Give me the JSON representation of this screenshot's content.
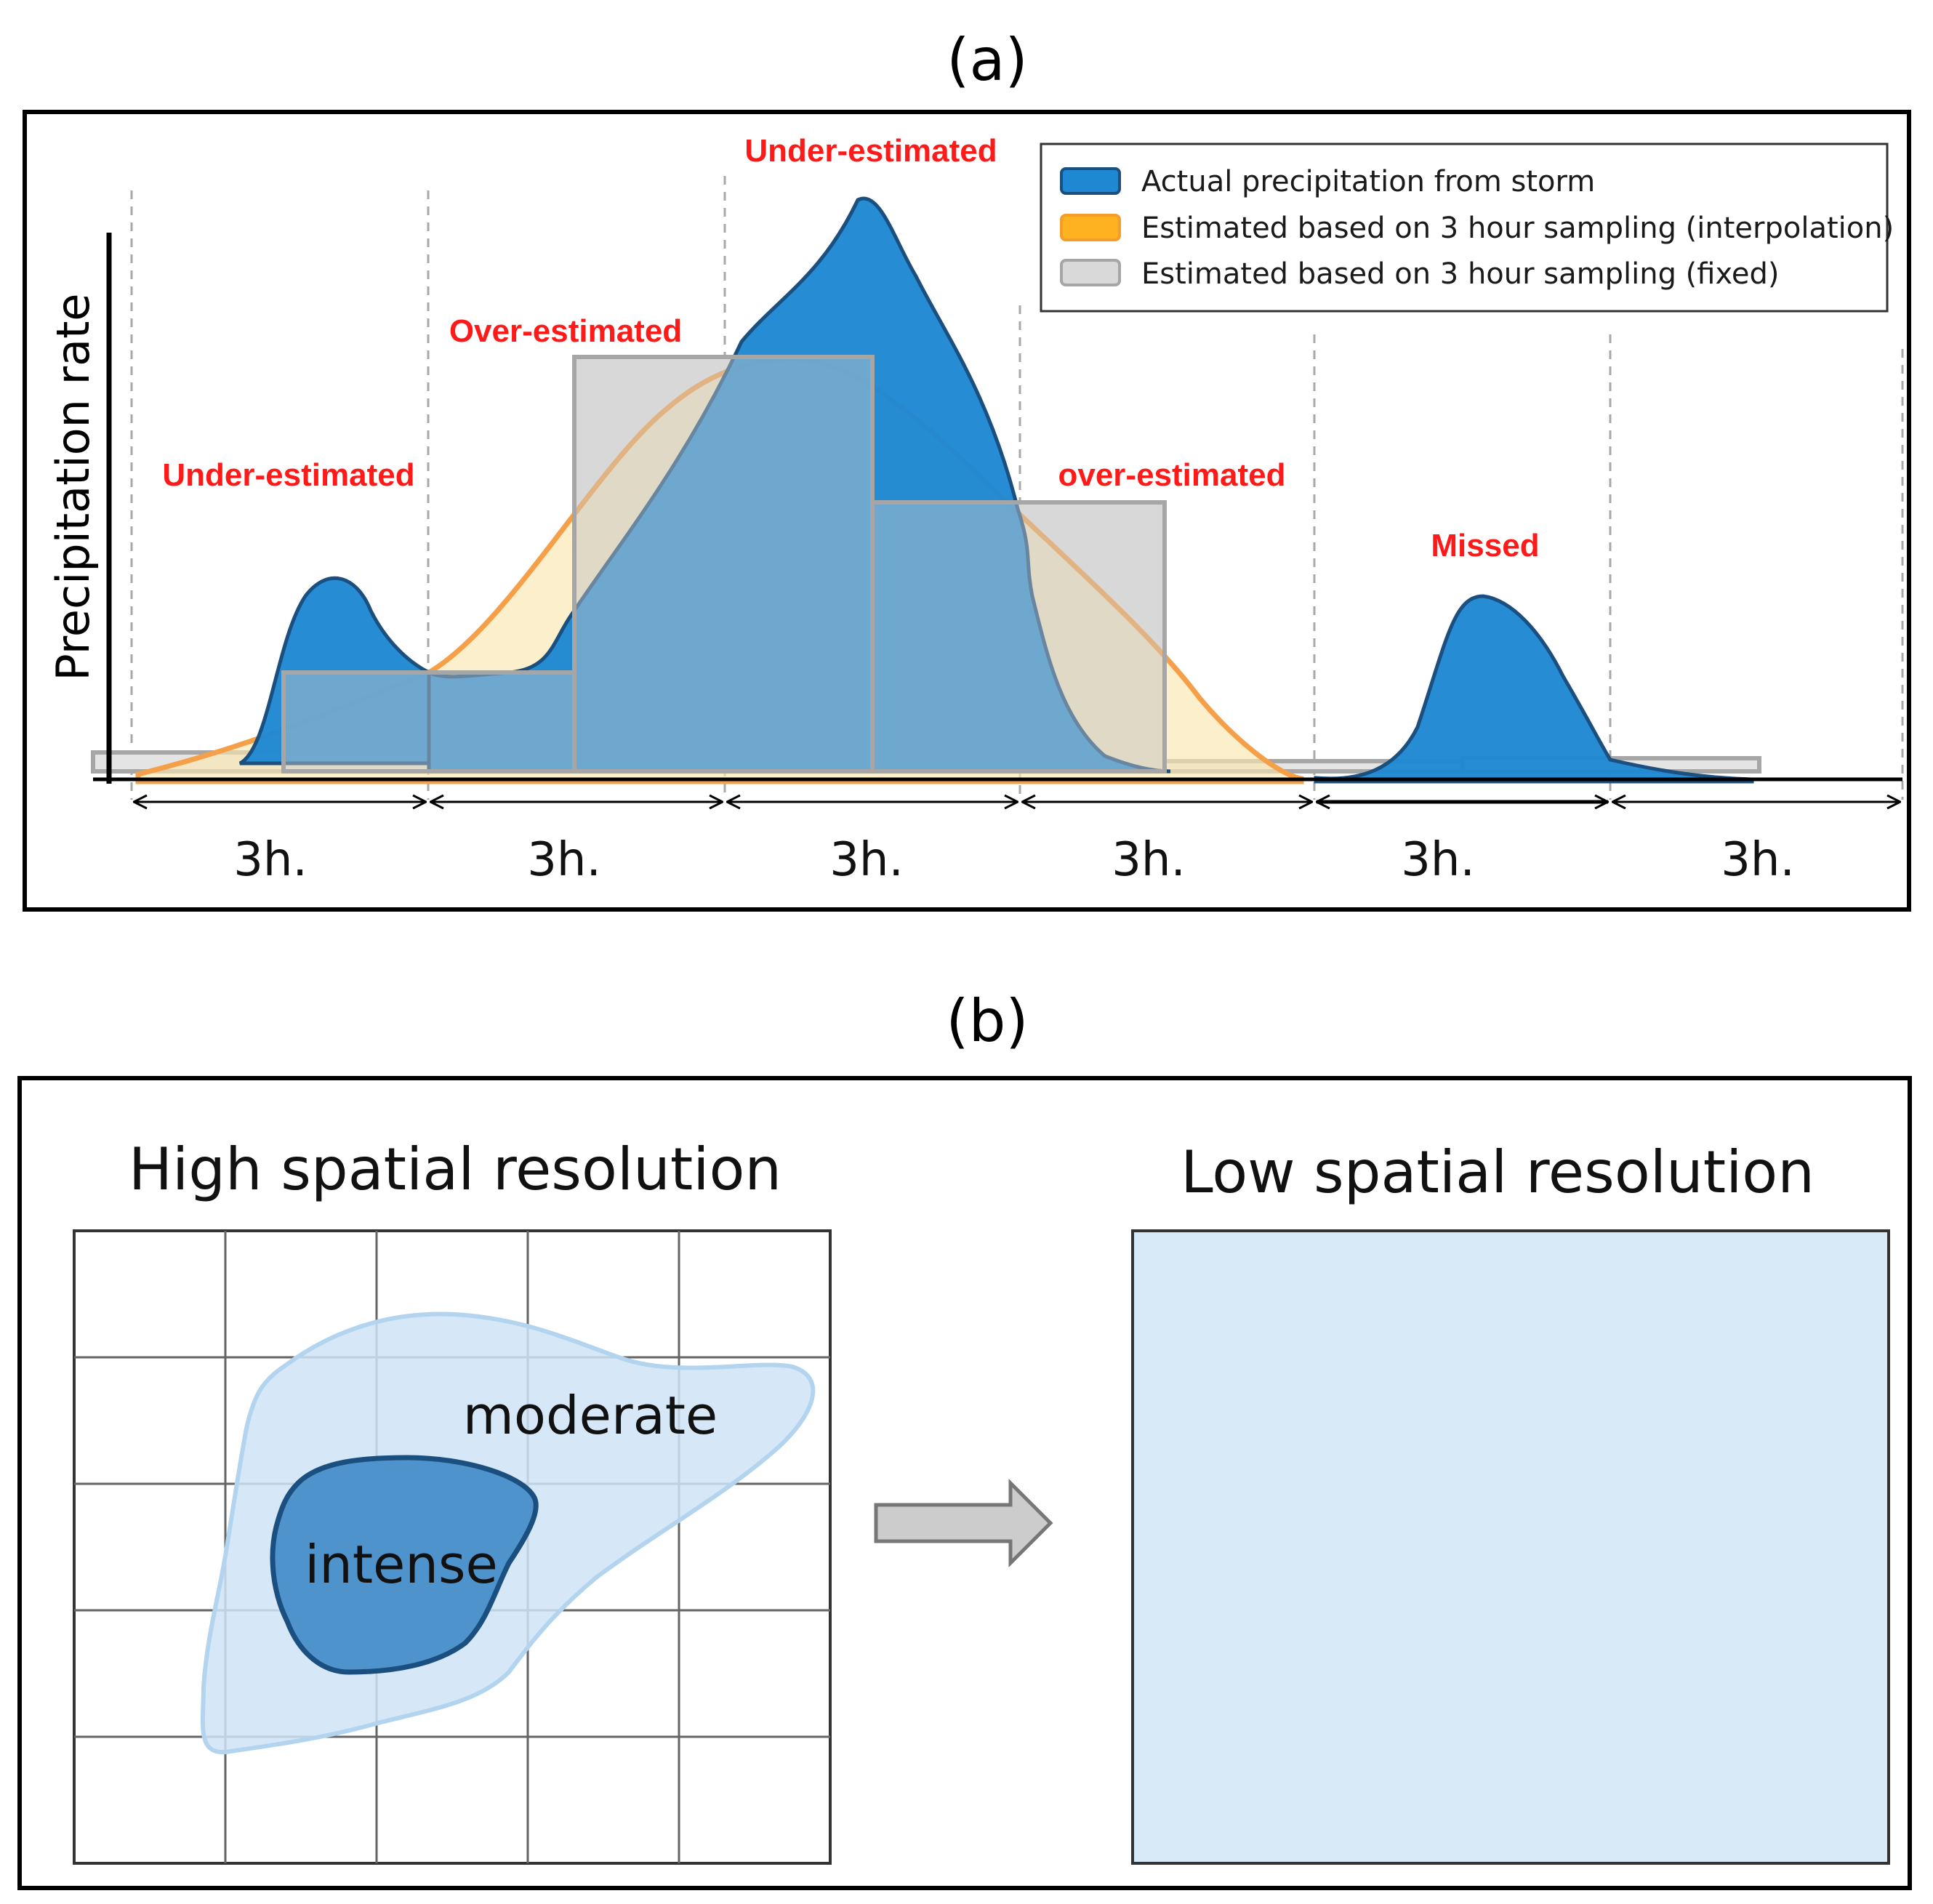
{
  "panel_a": {
    "label": "(a)",
    "y_axis_label": "Precipitation rate",
    "annotations": [
      {
        "id": "under-estimated-1",
        "text": "Under-estimated"
      },
      {
        "id": "over-estimated-1",
        "text": "Over-estimated"
      },
      {
        "id": "under-estimated-2",
        "text": "Under-estimated"
      },
      {
        "id": "over-estimated-2",
        "text": "over-estimated"
      },
      {
        "id": "missed",
        "text": "Missed"
      }
    ],
    "legend": [
      {
        "id": "actual",
        "text": "Actual precipitation from storm",
        "color": "#1f88d2"
      },
      {
        "id": "interp",
        "text": "Estimated based on 3 hour sampling (interpolation)",
        "color": "#ffb21f"
      },
      {
        "id": "fixed",
        "text": "Estimated based on 3 hour sampling (fixed)",
        "color": "#d9d9d9"
      }
    ],
    "intervals": [
      "3h.",
      "3h.",
      "3h.",
      "3h.",
      "3h.",
      "3h."
    ],
    "colors": {
      "actual_fill": "#1f88d2",
      "actual_stroke": "#1a4f80",
      "interp_fill": "#fbe7b0",
      "interp_stroke": "#f5a048",
      "fixed_fill": "#e4e4e4",
      "fixed_stroke": "#a6a6a6",
      "annotation": "#ff1a1a"
    }
  },
  "panel_b": {
    "label": "(b)",
    "left_title": "High spatial resolution",
    "right_title": "Low spatial resolution",
    "moderate_label": "moderate",
    "intense_label": "intense",
    "colors": {
      "moderate_fill": "#cfe4f6",
      "moderate_stroke": "#b3d4ef",
      "intense_fill": "#4f93cc",
      "intense_stroke": "#1b4f80",
      "low_res_fill": "#d8eaf7",
      "arrow_fill": "#cccccc"
    }
  }
}
